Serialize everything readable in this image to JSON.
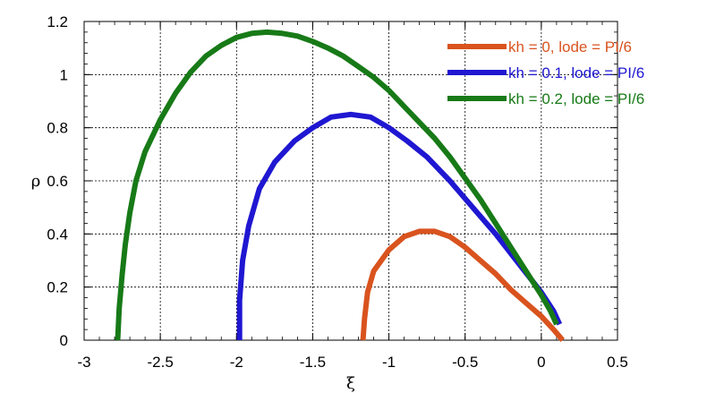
{
  "chart_data": {
    "type": "line",
    "xlabel": "ξ",
    "ylabel": "ρ",
    "xlim": [
      -3,
      0.5
    ],
    "ylim": [
      0,
      1.2
    ],
    "xticks": [
      -3,
      -2.5,
      -2,
      -1.5,
      -1,
      -0.5,
      0,
      0.5
    ],
    "yticks": [
      0,
      0.2,
      0.4,
      0.6,
      0.8,
      1,
      1.2
    ],
    "xtick_labels": [
      "-3",
      "-2.5",
      "-2",
      "-1.5",
      "-1",
      "-0.5",
      "0",
      "0.5"
    ],
    "ytick_labels": [
      "0",
      "0.2",
      "0.4",
      "0.6",
      "0.8",
      "1",
      "1.2"
    ],
    "grid": true,
    "legend_position": "top-right",
    "series": [
      {
        "name": "kh = 0, lode = PI/6",
        "color": "#d9531e",
        "x": [
          -1.17,
          -1.16,
          -1.14,
          -1.1,
          -1.0,
          -0.9,
          -0.8,
          -0.7,
          -0.6,
          -0.5,
          -0.4,
          -0.3,
          -0.2,
          -0.1,
          0.0,
          0.08,
          0.14
        ],
        "y": [
          0.0,
          0.08,
          0.18,
          0.26,
          0.34,
          0.39,
          0.41,
          0.41,
          0.39,
          0.35,
          0.3,
          0.25,
          0.19,
          0.14,
          0.09,
          0.04,
          0.0
        ]
      },
      {
        "name": "kh = 0.1, lode = PI/6",
        "color": "#1f17d1",
        "x": [
          -1.98,
          -1.98,
          -1.96,
          -1.92,
          -1.85,
          -1.75,
          -1.62,
          -1.5,
          -1.38,
          -1.25,
          -1.12,
          -1.0,
          -0.88,
          -0.75,
          -0.6,
          -0.45,
          -0.3,
          -0.15,
          0.0,
          0.08,
          0.12
        ],
        "y": [
          0.0,
          0.15,
          0.3,
          0.43,
          0.57,
          0.67,
          0.75,
          0.8,
          0.84,
          0.85,
          0.84,
          0.8,
          0.75,
          0.69,
          0.6,
          0.5,
          0.4,
          0.29,
          0.18,
          0.11,
          0.06
        ]
      },
      {
        "name": "kh = 0.2, lode = PI/6",
        "color": "#177a17",
        "x": [
          -2.78,
          -2.77,
          -2.75,
          -2.73,
          -2.7,
          -2.66,
          -2.6,
          -2.5,
          -2.4,
          -2.3,
          -2.2,
          -2.1,
          -2.0,
          -1.9,
          -1.8,
          -1.7,
          -1.6,
          -1.5,
          -1.4,
          -1.3,
          -1.2,
          -1.1,
          -1.0,
          -0.9,
          -0.8,
          -0.7,
          -0.6,
          -0.5,
          -0.4,
          -0.3,
          -0.2,
          -0.1,
          0.0,
          0.06,
          0.1
        ],
        "y": [
          0.0,
          0.12,
          0.25,
          0.36,
          0.48,
          0.6,
          0.71,
          0.83,
          0.93,
          1.01,
          1.07,
          1.11,
          1.14,
          1.155,
          1.16,
          1.155,
          1.145,
          1.125,
          1.1,
          1.07,
          1.03,
          0.99,
          0.94,
          0.88,
          0.82,
          0.76,
          0.69,
          0.61,
          0.53,
          0.44,
          0.35,
          0.26,
          0.17,
          0.11,
          0.06
        ]
      }
    ]
  }
}
